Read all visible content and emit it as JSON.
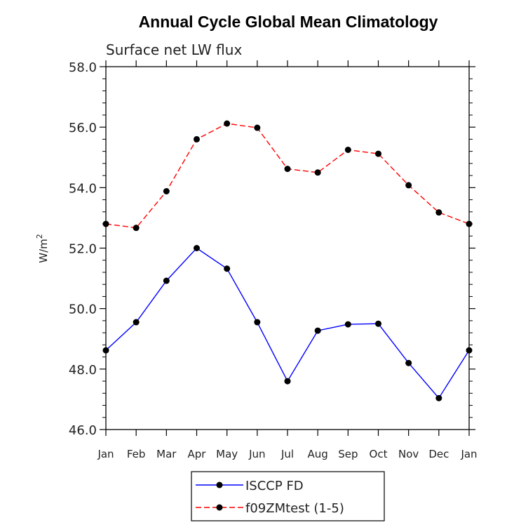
{
  "chart_data": {
    "type": "line",
    "title": "Annual Cycle Global Mean Climatology",
    "subtitle": "Surface net LW flux",
    "xlabel": "",
    "ylabel_base": "W/m",
    "ylabel_sup": "2",
    "categories": [
      "Jan",
      "Feb",
      "Mar",
      "Apr",
      "May",
      "Jun",
      "Jul",
      "Aug",
      "Sep",
      "Oct",
      "Nov",
      "Dec",
      "Jan"
    ],
    "ylim": [
      46.0,
      58.0
    ],
    "yticks": [
      46.0,
      48.0,
      50.0,
      52.0,
      54.0,
      56.0,
      58.0
    ],
    "ytick_labels": [
      "46.0",
      "48.0",
      "50.0",
      "52.0",
      "54.0",
      "56.0",
      "58.0"
    ],
    "series": [
      {
        "name": "ISCCP FD",
        "color": "#0000ff",
        "dash": "solid",
        "values": [
          48.62,
          49.55,
          50.92,
          52.0,
          51.32,
          49.55,
          47.6,
          49.27,
          49.48,
          49.5,
          48.2,
          47.04,
          48.62
        ]
      },
      {
        "name": "f09ZMtest (1-5)",
        "color": "#ff0000",
        "dash": "dashed",
        "values": [
          52.8,
          52.67,
          53.88,
          55.6,
          56.12,
          55.98,
          54.62,
          54.5,
          55.25,
          55.12,
          54.08,
          53.18,
          52.8
        ]
      }
    ],
    "grid": false,
    "legend_position": "bottom-center"
  }
}
